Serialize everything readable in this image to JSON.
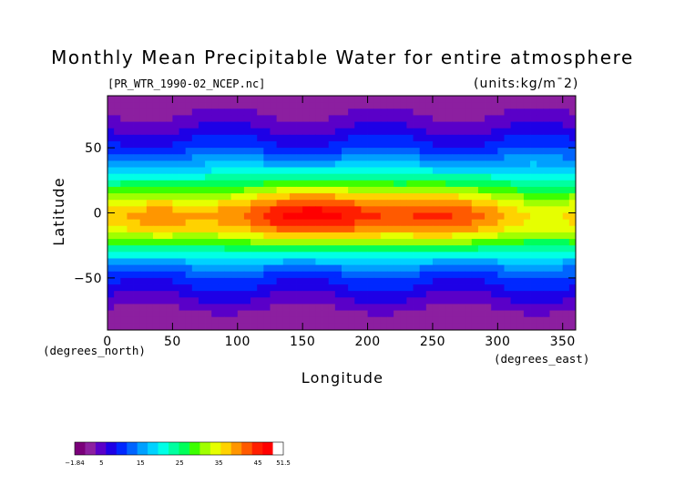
{
  "chart_data": {
    "type": "heatmap",
    "title": "Monthly Mean Precipitable Water for entire atmosphere",
    "subtitle": "[PR_WTR_1990-02_NCEP.nc]",
    "units": "(units:kg/m¯2)",
    "xlabel": "Longitude",
    "ylabel": "Latitude",
    "x_unit_note": "(degrees_east)",
    "y_unit_note": "(degrees_north)",
    "xlim": [
      0,
      360
    ],
    "ylim": [
      -90,
      90
    ],
    "xticks": [
      "0",
      "50",
      "100",
      "150",
      "200",
      "250",
      "300",
      "350"
    ],
    "yticks": [
      "50",
      "0",
      "−50"
    ],
    "colorbar": {
      "min": -1.84,
      "max": 51.5,
      "labels": [
        "−1.84",
        "5",
        "15",
        "25",
        "35",
        "45",
        "51.5"
      ],
      "colors": [
        "#7a007a",
        "#8c1fa0",
        "#5a00c8",
        "#1e00e6",
        "#0028ff",
        "#0064ff",
        "#00a0ff",
        "#00d2ff",
        "#00ffe6",
        "#00ffa0",
        "#00ff5a",
        "#3cff00",
        "#a0ff00",
        "#e6ff00",
        "#ffd200",
        "#ff9600",
        "#ff5a00",
        "#ff1e00",
        "#ff0000",
        "#ffffff"
      ]
    },
    "zonal_profile": {
      "latitudes": [
        90,
        80,
        70,
        60,
        50,
        40,
        30,
        20,
        10,
        0,
        -10,
        -20,
        -30,
        -40,
        -50,
        -60,
        -70,
        -80,
        -90
      ],
      "values": [
        2,
        3,
        5,
        8,
        11,
        16,
        22,
        30,
        38,
        44,
        42,
        34,
        24,
        16,
        11,
        8,
        5,
        2,
        1
      ]
    }
  }
}
